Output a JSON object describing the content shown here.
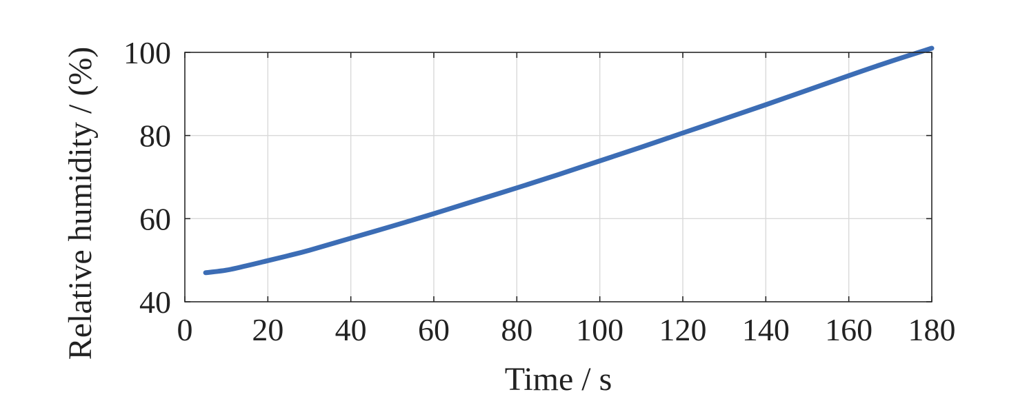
{
  "chart_data": {
    "type": "line",
    "title": "",
    "xlabel": "Time / s",
    "ylabel": "Relative humidity / (%)",
    "xlim": [
      0,
      180
    ],
    "ylim": [
      40,
      100
    ],
    "xticks": [
      0,
      20,
      40,
      60,
      80,
      100,
      120,
      140,
      160,
      180
    ],
    "yticks": [
      40,
      60,
      80,
      100
    ],
    "grid": true,
    "legend": "none",
    "colors": {
      "series": "#3c6db5",
      "axis": "#262626",
      "grid": "#d9d9d9"
    },
    "series": [
      {
        "x": [
          5,
          10,
          15,
          20,
          25,
          30,
          40,
          50,
          60,
          70,
          80,
          90,
          100,
          110,
          120,
          130,
          140,
          150,
          160,
          170,
          180
        ],
        "y": [
          47.0,
          47.6,
          48.7,
          49.9,
          51.1,
          52.4,
          55.3,
          58.2,
          61.2,
          64.3,
          67.4,
          70.6,
          73.9,
          77.2,
          80.6,
          84.0,
          87.4,
          90.9,
          94.4,
          97.8,
          101.0
        ]
      }
    ]
  }
}
